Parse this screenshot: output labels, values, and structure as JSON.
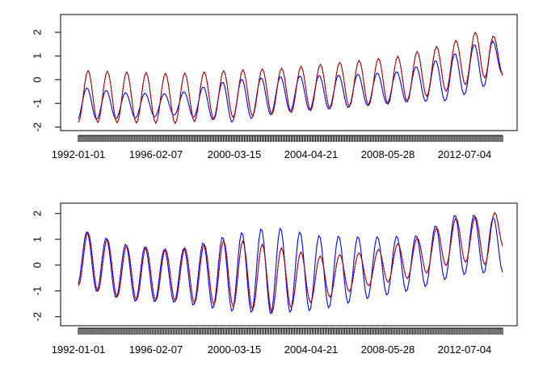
{
  "chart_data": [
    {
      "type": "line",
      "x_tick_labels": [
        "1992-01-01",
        "1996-02-07",
        "2000-03-15",
        "2004-04-21",
        "2008-05-28",
        "2012-07-04"
      ],
      "y_ticks": [
        -2,
        -1,
        0,
        1,
        2
      ],
      "ylim": [
        -2.15,
        2.75
      ],
      "grid": false,
      "n_points": 264,
      "series": [
        {
          "color": "#0000ff",
          "role": "observed",
          "mean_control": [
            [
              0,
              -1.0
            ],
            [
              30,
              -1.1
            ],
            [
              60,
              -1.05
            ],
            [
              95,
              -0.9
            ],
            [
              130,
              -0.6
            ],
            [
              165,
              -0.5
            ],
            [
              200,
              -0.3
            ],
            [
              230,
              0.05
            ],
            [
              255,
              0.8
            ],
            [
              264,
              0.7
            ]
          ],
          "amp_control": [
            [
              0,
              0.7
            ],
            [
              30,
              0.55
            ],
            [
              60,
              0.45
            ],
            [
              95,
              0.9
            ],
            [
              130,
              0.75
            ],
            [
              165,
              0.7
            ],
            [
              200,
              0.65
            ],
            [
              230,
              0.95
            ],
            [
              255,
              1.0
            ],
            [
              264,
              0.4
            ]
          ]
        },
        {
          "color": "#ff0000",
          "role": "fitted",
          "mean_control": [
            [
              0,
              -0.7
            ],
            [
              60,
              -0.8
            ],
            [
              95,
              -0.6
            ],
            [
              130,
              -0.45
            ],
            [
              165,
              -0.2
            ],
            [
              200,
              0.0
            ],
            [
              230,
              0.55
            ],
            [
              255,
              1.2
            ],
            [
              264,
              0.5
            ]
          ],
          "amp_control": [
            [
              0,
              1.1
            ],
            [
              60,
              1.05
            ],
            [
              95,
              1.0
            ],
            [
              130,
              0.95
            ],
            [
              165,
              0.95
            ],
            [
              200,
              1.0
            ],
            [
              230,
              1.0
            ],
            [
              255,
              1.05
            ],
            [
              264,
              0.4
            ]
          ]
        },
        {
          "color": "#000000",
          "role": "fitted-dotted",
          "dashed": true,
          "follows": "fitted"
        }
      ]
    },
    {
      "type": "line",
      "x_tick_labels": [
        "1992-01-01",
        "1996-02-07",
        "2000-03-15",
        "2004-04-21",
        "2008-05-28",
        "2012-07-04"
      ],
      "y_ticks": [
        -2,
        -1,
        0,
        1,
        2
      ],
      "ylim": [
        -2.35,
        2.4
      ],
      "grid": false,
      "n_points": 264,
      "series": [
        {
          "color": "#0000ff",
          "role": "observed",
          "mean_control": [
            [
              0,
              0.3
            ],
            [
              30,
              -0.3
            ],
            [
              60,
              -0.45
            ],
            [
              95,
              -0.3
            ],
            [
              120,
              -0.2
            ],
            [
              150,
              -0.3
            ],
            [
              180,
              -0.1
            ],
            [
              210,
              0.1
            ],
            [
              235,
              0.8
            ],
            [
              255,
              0.8
            ],
            [
              264,
              0.7
            ]
          ],
          "amp_control": [
            [
              0,
              1.1
            ],
            [
              30,
              1.1
            ],
            [
              60,
              1.0
            ],
            [
              95,
              1.5
            ],
            [
              120,
              1.7
            ],
            [
              150,
              1.45
            ],
            [
              180,
              1.2
            ],
            [
              210,
              1.05
            ],
            [
              235,
              1.2
            ],
            [
              255,
              1.1
            ],
            [
              264,
              1.0
            ]
          ]
        },
        {
          "color": "#ff0000",
          "role": "fitted",
          "mean_control": [
            [
              0,
              0.3
            ],
            [
              30,
              -0.3
            ],
            [
              60,
              -0.4
            ],
            [
              95,
              -0.3
            ],
            [
              120,
              -0.55
            ],
            [
              150,
              -0.5
            ],
            [
              180,
              -0.15
            ],
            [
              210,
              0.3
            ],
            [
              235,
              1.0
            ],
            [
              255,
              0.95
            ],
            [
              264,
              1.5
            ]
          ],
          "amp_control": [
            [
              0,
              1.1
            ],
            [
              30,
              1.05
            ],
            [
              60,
              1.0
            ],
            [
              95,
              1.3
            ],
            [
              120,
              1.3
            ],
            [
              150,
              0.85
            ],
            [
              180,
              0.65
            ],
            [
              210,
              0.75
            ],
            [
              235,
              0.85
            ],
            [
              255,
              0.95
            ],
            [
              264,
              0.8
            ]
          ]
        },
        {
          "color": "#000000",
          "role": "fitted-dotted",
          "dashed": true,
          "follows": "fitted"
        }
      ]
    }
  ]
}
